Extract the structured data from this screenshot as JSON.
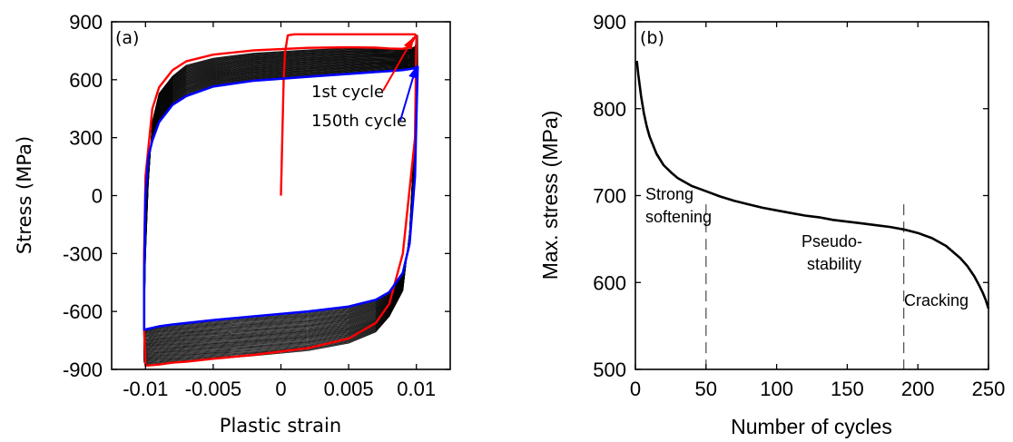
{
  "chart_data": [
    {
      "type": "line",
      "panel_label": "(a)",
      "xlabel": "Plastic strain",
      "ylabel": "Stress (MPa)",
      "xlim": [
        -0.0125,
        0.0125
      ],
      "ylim": [
        -900,
        900
      ],
      "xticks": [
        -0.01,
        -0.005,
        0,
        0.005,
        0.01
      ],
      "xtick_labels": [
        "-0.01",
        "-0.005",
        "0",
        "0.005",
        "0.01"
      ],
      "yticks": [
        -900,
        -600,
        -300,
        0,
        300,
        600,
        900
      ],
      "ytick_labels": [
        "-900",
        "-600",
        "-300",
        "0",
        "300",
        "600",
        "900"
      ],
      "grid": false,
      "colors": {
        "first_cycle": "#ff0000",
        "last_cycle": "#0000ff",
        "intermediate": "#000000"
      },
      "annotations": [
        {
          "text": "1st cycle",
          "points_to": [
            0.0098,
            820
          ]
        },
        {
          "text": "150th cycle",
          "points_to": [
            0.01,
            670
          ]
        }
      ],
      "series": [
        {
          "name": "1st cycle",
          "x": [
            0,
            0.0001,
            0.0002,
            0.0003,
            0.0005,
            0.001,
            0.002,
            0.004,
            0.006,
            0.008,
            0.0099,
            0.01,
            0.0099,
            0.009,
            0.008,
            0.007,
            0.005,
            0.002,
            -0.002,
            -0.005,
            -0.007,
            -0.008,
            -0.009,
            -0.0098,
            -0.01,
            -0.0101,
            -0.0101,
            -0.01,
            -0.0095,
            -0.009,
            -0.008,
            -0.007,
            -0.005,
            -0.002,
            0.002,
            0.005,
            0.007,
            0.008,
            0.009,
            0.0095,
            0.01
          ],
          "y": [
            0,
            300,
            600,
            740,
            830,
            835,
            835,
            835,
            835,
            835,
            835,
            825,
            300,
            -300,
            -560,
            -660,
            -740,
            -790,
            -825,
            -845,
            -860,
            -865,
            -875,
            -880,
            -880,
            -700,
            -300,
            100,
            450,
            560,
            650,
            695,
            730,
            752,
            765,
            768,
            766,
            762,
            760,
            770,
            835
          ]
        },
        {
          "name": "150th cycle",
          "x": [
            0.0101,
            0.01,
            0.0099,
            0.0095,
            0.009,
            0.008,
            0.007,
            0.005,
            0.002,
            -0.002,
            -0.005,
            -0.007,
            -0.008,
            -0.009,
            -0.0098,
            -0.0101,
            -0.0101,
            -0.01,
            -0.0098,
            -0.0095,
            -0.009,
            -0.008,
            -0.007,
            -0.005,
            -0.002,
            0.002,
            0.005,
            0.007,
            0.008,
            0.009,
            0.0095,
            0.0099,
            0.0101
          ],
          "y": [
            670,
            400,
            100,
            -250,
            -400,
            -500,
            -540,
            -575,
            -600,
            -625,
            -645,
            -660,
            -668,
            -677,
            -690,
            -695,
            -400,
            0,
            200,
            285,
            380,
            470,
            515,
            565,
            595,
            615,
            630,
            640,
            645,
            650,
            655,
            660,
            670
          ]
        }
      ]
    },
    {
      "type": "line",
      "panel_label": "(b)",
      "xlabel": "Number of cycles",
      "ylabel": "Max. stress (MPa)",
      "xlim": [
        0,
        250
      ],
      "ylim": [
        500,
        900
      ],
      "xticks": [
        0,
        50,
        100,
        150,
        200,
        250
      ],
      "xtick_labels": [
        "0",
        "50",
        "100",
        "150",
        "200",
        "250"
      ],
      "yticks": [
        500,
        600,
        700,
        800,
        900
      ],
      "ytick_labels": [
        "500",
        "600",
        "700",
        "800",
        "900"
      ],
      "grid": false,
      "vlines": [
        50,
        190
      ],
      "annotations": [
        {
          "lines": [
            "Strong",
            "softening"
          ]
        },
        {
          "lines": [
            "Pseudo-",
            "stability"
          ]
        },
        {
          "lines": [
            "Cracking"
          ]
        }
      ],
      "series": [
        {
          "x": [
            1,
            2,
            4,
            6,
            8,
            10,
            15,
            20,
            25,
            30,
            40,
            50,
            60,
            70,
            80,
            90,
            100,
            110,
            120,
            130,
            140,
            150,
            160,
            170,
            180,
            190,
            200,
            210,
            220,
            230,
            235,
            240,
            243,
            246,
            248,
            250
          ],
          "y": [
            855,
            840,
            815,
            795,
            780,
            768,
            748,
            735,
            727,
            720,
            711,
            705,
            699,
            694,
            690,
            686,
            683,
            680,
            677,
            675,
            672,
            670,
            668,
            666,
            664,
            661,
            657,
            651,
            642,
            628,
            619,
            607,
            598,
            588,
            580,
            570
          ]
        }
      ]
    }
  ]
}
